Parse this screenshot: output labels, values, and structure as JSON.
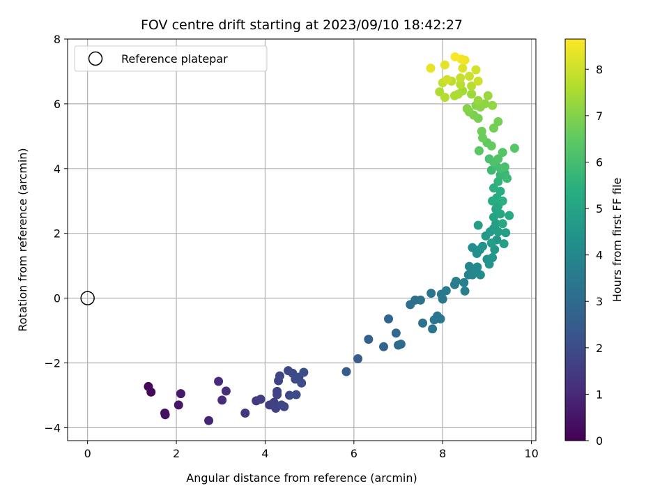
{
  "chart_data": {
    "type": "scatter",
    "title": "FOV centre drift starting at 2023/09/10 18:42:27",
    "xlabel": "Angular distance from reference (arcmin)",
    "ylabel": "Rotation from reference (arcmin)",
    "xlim": [
      -0.45,
      10.1
    ],
    "ylim": [
      -4.4,
      8.0
    ],
    "x_ticks": [
      0,
      2,
      4,
      6,
      8,
      10
    ],
    "y_ticks": [
      -4,
      -2,
      0,
      2,
      4,
      6,
      8
    ],
    "grid": true,
    "legend": {
      "position": "top-left",
      "entries": [
        {
          "label": "Reference platepar",
          "marker": "open-circle"
        }
      ]
    },
    "reference_point": {
      "x": 0,
      "y": 0,
      "label": "Reference platepar"
    },
    "colorbar": {
      "label": "Hours from first FF file",
      "colormap": "viridis",
      "range": [
        0,
        8.65
      ],
      "ticks": [
        0,
        1,
        2,
        3,
        4,
        5,
        6,
        7,
        8
      ]
    },
    "series": [
      {
        "color_by": "hours",
        "points": [
          {
            "x": 1.37,
            "y": -2.73,
            "c": 0.15
          },
          {
            "x": 1.43,
            "y": -2.9,
            "c": 0.2
          },
          {
            "x": 1.74,
            "y": -3.55,
            "c": 0.35
          },
          {
            "x": 1.75,
            "y": -3.6,
            "c": 0.4
          },
          {
            "x": 2.05,
            "y": -3.3,
            "c": 0.55
          },
          {
            "x": 2.1,
            "y": -2.95,
            "c": 0.6
          },
          {
            "x": 2.73,
            "y": -3.78,
            "c": 0.9
          },
          {
            "x": 2.95,
            "y": -2.57,
            "c": 1.0
          },
          {
            "x": 3.03,
            "y": -3.15,
            "c": 1.05
          },
          {
            "x": 3.12,
            "y": -2.87,
            "c": 1.1
          },
          {
            "x": 3.55,
            "y": -3.55,
            "c": 1.35
          },
          {
            "x": 3.8,
            "y": -3.17,
            "c": 1.5
          },
          {
            "x": 3.9,
            "y": -3.12,
            "c": 1.55
          },
          {
            "x": 4.1,
            "y": -3.3,
            "c": 1.6
          },
          {
            "x": 4.2,
            "y": -3.22,
            "c": 1.65
          },
          {
            "x": 4.24,
            "y": -3.4,
            "c": 1.7
          },
          {
            "x": 4.27,
            "y": -2.98,
            "c": 1.72
          },
          {
            "x": 4.27,
            "y": -2.88,
            "c": 1.74
          },
          {
            "x": 4.3,
            "y": -2.55,
            "c": 1.76
          },
          {
            "x": 4.33,
            "y": -2.4,
            "c": 1.78
          },
          {
            "x": 4.37,
            "y": -3.3,
            "c": 1.8
          },
          {
            "x": 4.43,
            "y": -3.35,
            "c": 1.82
          },
          {
            "x": 4.52,
            "y": -2.24,
            "c": 1.86
          },
          {
            "x": 4.55,
            "y": -3.0,
            "c": 1.88
          },
          {
            "x": 4.62,
            "y": -2.32,
            "c": 1.9
          },
          {
            "x": 4.68,
            "y": -2.5,
            "c": 1.95
          },
          {
            "x": 4.7,
            "y": -2.98,
            "c": 1.98
          },
          {
            "x": 4.76,
            "y": -2.44,
            "c": 2.0
          },
          {
            "x": 4.82,
            "y": -2.62,
            "c": 2.03
          },
          {
            "x": 4.87,
            "y": -2.29,
            "c": 2.05
          },
          {
            "x": 5.83,
            "y": -2.27,
            "c": 2.45
          },
          {
            "x": 6.09,
            "y": -1.87,
            "c": 2.55
          },
          {
            "x": 6.33,
            "y": -1.27,
            "c": 2.65
          },
          {
            "x": 6.67,
            "y": -1.5,
            "c": 2.75
          },
          {
            "x": 6.78,
            "y": -0.64,
            "c": 2.8
          },
          {
            "x": 6.95,
            "y": -1.08,
            "c": 2.9
          },
          {
            "x": 7.0,
            "y": -1.45,
            "c": 2.95
          },
          {
            "x": 7.06,
            "y": -1.42,
            "c": 3.0
          },
          {
            "x": 7.27,
            "y": -0.2,
            "c": 3.1
          },
          {
            "x": 7.38,
            "y": -0.06,
            "c": 3.15
          },
          {
            "x": 7.5,
            "y": -0.06,
            "c": 3.2
          },
          {
            "x": 7.55,
            "y": -0.77,
            "c": 3.25
          },
          {
            "x": 7.74,
            "y": 0.15,
            "c": 3.3
          },
          {
            "x": 7.77,
            "y": -0.95,
            "c": 3.32
          },
          {
            "x": 7.81,
            "y": -0.67,
            "c": 3.35
          },
          {
            "x": 7.88,
            "y": -0.55,
            "c": 3.38
          },
          {
            "x": 7.95,
            "y": -0.64,
            "c": 3.4
          },
          {
            "x": 7.97,
            "y": 0.12,
            "c": 3.42
          },
          {
            "x": 8.0,
            "y": -0.03,
            "c": 3.45
          },
          {
            "x": 8.08,
            "y": 0.23,
            "c": 3.5
          },
          {
            "x": 8.27,
            "y": 0.42,
            "c": 3.6
          },
          {
            "x": 8.3,
            "y": 0.52,
            "c": 3.65
          },
          {
            "x": 8.48,
            "y": 0.48,
            "c": 3.7
          },
          {
            "x": 8.5,
            "y": 0.22,
            "c": 3.75
          },
          {
            "x": 8.58,
            "y": 0.72,
            "c": 3.85
          },
          {
            "x": 8.6,
            "y": 0.98,
            "c": 3.9
          },
          {
            "x": 8.67,
            "y": 0.72,
            "c": 3.95
          },
          {
            "x": 8.74,
            "y": 0.82,
            "c": 4.0
          },
          {
            "x": 8.78,
            "y": 0.96,
            "c": 4.05
          },
          {
            "x": 8.85,
            "y": 0.72,
            "c": 4.1
          },
          {
            "x": 8.67,
            "y": 1.56,
            "c": 4.2
          },
          {
            "x": 8.77,
            "y": 1.38,
            "c": 4.25
          },
          {
            "x": 8.84,
            "y": 1.5,
            "c": 4.3
          },
          {
            "x": 8.9,
            "y": 1.6,
            "c": 4.35
          },
          {
            "x": 9.0,
            "y": 1.2,
            "c": 4.4
          },
          {
            "x": 9.05,
            "y": 1.05,
            "c": 4.45
          },
          {
            "x": 9.12,
            "y": 1.25,
            "c": 4.5
          },
          {
            "x": 9.17,
            "y": 1.5,
            "c": 4.55
          },
          {
            "x": 9.22,
            "y": 1.8,
            "c": 4.6
          },
          {
            "x": 8.97,
            "y": 1.92,
            "c": 4.65
          },
          {
            "x": 9.07,
            "y": 2.05,
            "c": 4.7
          },
          {
            "x": 9.1,
            "y": 1.7,
            "c": 4.72
          },
          {
            "x": 9.15,
            "y": 2.15,
            "c": 4.75
          },
          {
            "x": 9.2,
            "y": 2.3,
            "c": 4.8
          },
          {
            "x": 8.8,
            "y": 2.25,
            "c": 4.82
          },
          {
            "x": 9.25,
            "y": 2.05,
            "c": 4.85
          },
          {
            "x": 9.38,
            "y": 1.68,
            "c": 4.88
          },
          {
            "x": 9.42,
            "y": 2.02,
            "c": 4.9
          },
          {
            "x": 9.15,
            "y": 2.5,
            "c": 5.0
          },
          {
            "x": 9.2,
            "y": 2.75,
            "c": 5.05
          },
          {
            "x": 9.25,
            "y": 2.85,
            "c": 5.1
          },
          {
            "x": 9.3,
            "y": 2.6,
            "c": 5.15
          },
          {
            "x": 9.35,
            "y": 2.3,
            "c": 5.2
          },
          {
            "x": 9.5,
            "y": 2.55,
            "c": 5.25
          },
          {
            "x": 9.12,
            "y": 3.0,
            "c": 5.3
          },
          {
            "x": 9.22,
            "y": 3.1,
            "c": 5.35
          },
          {
            "x": 9.3,
            "y": 3.3,
            "c": 5.4
          },
          {
            "x": 9.35,
            "y": 3.0,
            "c": 5.45
          },
          {
            "x": 9.15,
            "y": 3.4,
            "c": 5.5
          },
          {
            "x": 9.25,
            "y": 3.6,
            "c": 5.6
          },
          {
            "x": 9.3,
            "y": 3.8,
            "c": 5.7
          },
          {
            "x": 9.4,
            "y": 3.85,
            "c": 5.75
          },
          {
            "x": 9.45,
            "y": 3.7,
            "c": 5.8
          },
          {
            "x": 9.1,
            "y": 3.95,
            "c": 5.85
          },
          {
            "x": 9.2,
            "y": 4.1,
            "c": 5.9
          },
          {
            "x": 9.3,
            "y": 4.0,
            "c": 6.0
          },
          {
            "x": 9.4,
            "y": 4.05,
            "c": 6.05
          },
          {
            "x": 9.05,
            "y": 4.3,
            "c": 6.1
          },
          {
            "x": 9.15,
            "y": 4.2,
            "c": 6.15
          },
          {
            "x": 9.25,
            "y": 4.3,
            "c": 6.2
          },
          {
            "x": 9.35,
            "y": 4.5,
            "c": 6.3
          },
          {
            "x": 9.62,
            "y": 4.63,
            "c": 6.35
          },
          {
            "x": 8.82,
            "y": 4.55,
            "c": 6.4
          },
          {
            "x": 9.0,
            "y": 4.8,
            "c": 6.5
          },
          {
            "x": 9.1,
            "y": 4.7,
            "c": 6.55
          },
          {
            "x": 8.9,
            "y": 4.95,
            "c": 6.65
          },
          {
            "x": 8.88,
            "y": 5.15,
            "c": 6.7
          },
          {
            "x": 9.15,
            "y": 5.25,
            "c": 6.75
          },
          {
            "x": 9.25,
            "y": 5.45,
            "c": 6.8
          },
          {
            "x": 8.8,
            "y": 5.55,
            "c": 6.85
          },
          {
            "x": 8.7,
            "y": 5.65,
            "c": 6.9
          },
          {
            "x": 8.6,
            "y": 5.75,
            "c": 6.95
          },
          {
            "x": 8.55,
            "y": 5.85,
            "c": 7.0
          },
          {
            "x": 8.75,
            "y": 5.95,
            "c": 7.05
          },
          {
            "x": 8.85,
            "y": 5.9,
            "c": 7.1
          },
          {
            "x": 8.95,
            "y": 6.0,
            "c": 7.15
          },
          {
            "x": 9.12,
            "y": 5.95,
            "c": 7.2
          },
          {
            "x": 8.8,
            "y": 6.1,
            "c": 7.25
          },
          {
            "x": 9.02,
            "y": 6.25,
            "c": 7.3
          },
          {
            "x": 8.65,
            "y": 6.3,
            "c": 7.35
          },
          {
            "x": 8.45,
            "y": 6.4,
            "c": 7.45
          },
          {
            "x": 8.35,
            "y": 6.3,
            "c": 7.5
          },
          {
            "x": 8.27,
            "y": 6.25,
            "c": 7.55
          },
          {
            "x": 7.93,
            "y": 6.37,
            "c": 7.6
          },
          {
            "x": 8.05,
            "y": 6.2,
            "c": 7.65
          },
          {
            "x": 8.65,
            "y": 6.55,
            "c": 7.7
          },
          {
            "x": 8.4,
            "y": 6.6,
            "c": 7.75
          },
          {
            "x": 8.2,
            "y": 6.7,
            "c": 7.8
          },
          {
            "x": 8.0,
            "y": 6.65,
            "c": 7.85
          },
          {
            "x": 8.4,
            "y": 6.8,
            "c": 7.9
          },
          {
            "x": 8.6,
            "y": 6.85,
            "c": 7.95
          },
          {
            "x": 8.8,
            "y": 6.7,
            "c": 8.0
          },
          {
            "x": 8.1,
            "y": 6.75,
            "c": 8.05
          },
          {
            "x": 8.75,
            "y": 7.05,
            "c": 8.1
          },
          {
            "x": 8.45,
            "y": 7.1,
            "c": 8.2
          },
          {
            "x": 8.05,
            "y": 7.2,
            "c": 8.3
          },
          {
            "x": 7.73,
            "y": 7.1,
            "c": 8.35
          },
          {
            "x": 8.5,
            "y": 7.35,
            "c": 8.45
          },
          {
            "x": 8.42,
            "y": 7.38,
            "c": 8.5
          },
          {
            "x": 8.28,
            "y": 7.45,
            "c": 8.6
          }
        ]
      }
    ]
  }
}
